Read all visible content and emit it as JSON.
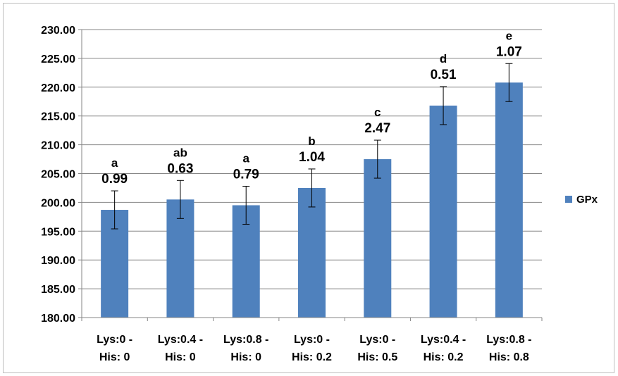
{
  "chart_data": {
    "type": "bar",
    "title": "",
    "xlabel": "",
    "ylabel": "",
    "ylim": [
      180,
      230
    ],
    "y_ticks": [
      "180.00",
      "185.00",
      "190.00",
      "195.00",
      "200.00",
      "205.00",
      "210.00",
      "215.00",
      "220.00",
      "225.00",
      "230.00"
    ],
    "grid": true,
    "legend_position": "right",
    "categories": [
      [
        "Lys:0 -",
        "His: 0"
      ],
      [
        "Lys:0.4 -",
        "His: 0"
      ],
      [
        "Lys:0.8 -",
        "His: 0"
      ],
      [
        "Lys:0 -",
        "His: 0.2"
      ],
      [
        "Lys:0 -",
        "His: 0.5"
      ],
      [
        "Lys:0.4 -",
        "His: 0.2"
      ],
      [
        "Lys:0.8 -",
        "His: 0.8"
      ]
    ],
    "series": [
      {
        "name": "GPx",
        "color": "#4f81bd",
        "values": [
          198.7,
          200.5,
          199.5,
          202.5,
          207.5,
          216.8,
          220.8
        ],
        "error": [
          3.3,
          3.3,
          3.3,
          3.3,
          3.3,
          3.3,
          3.3
        ],
        "letters": [
          "a",
          "ab",
          "a",
          "b",
          "c",
          "d",
          "e"
        ],
        "labels": [
          "0.99",
          "0.63",
          "0.79",
          "1.04",
          "2.47",
          "0.51",
          "1.07"
        ]
      }
    ]
  }
}
